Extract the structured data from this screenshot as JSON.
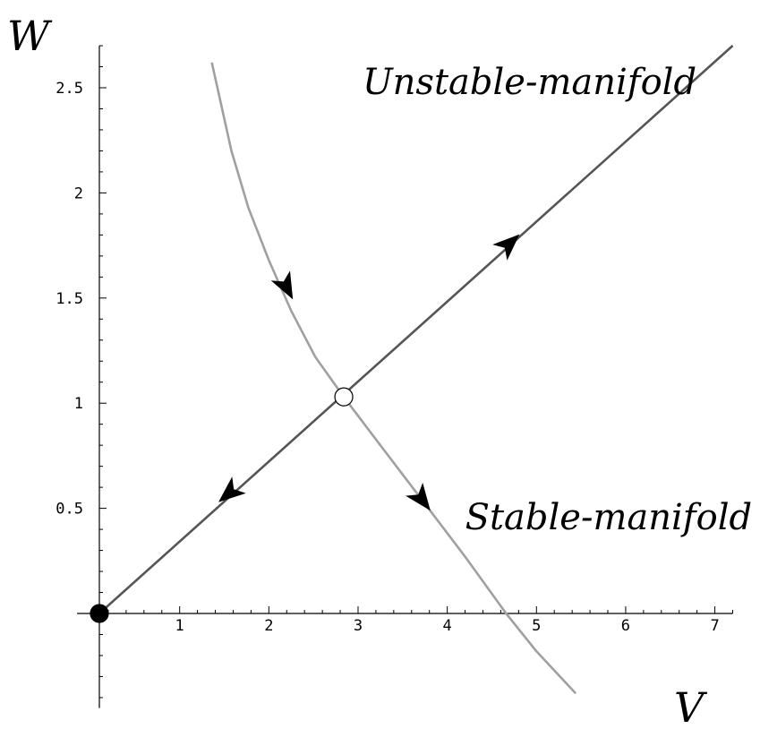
{
  "chart_data": {
    "type": "line",
    "xlabel": "V",
    "ylabel": "W",
    "xlim": [
      -0.15,
      7.2
    ],
    "ylim": [
      -0.45,
      2.7
    ],
    "x_ticks": [
      1,
      2,
      3,
      4,
      5,
      6,
      7
    ],
    "y_ticks": [
      0.5,
      1,
      1.5,
      2,
      2.5
    ],
    "x_tick_labels": [
      "1",
      "2",
      "3",
      "4",
      "5",
      "6",
      "7"
    ],
    "y_tick_labels": [
      "0.5",
      "1",
      "1.5",
      "2",
      "2.5"
    ],
    "grid": false,
    "series": [
      {
        "name": "Unstable-manifold",
        "color": "#555555",
        "points": [
          [
            0.1,
            0.0
          ],
          [
            7.2,
            2.7
          ]
        ],
        "arrows": [
          {
            "x": 4.7,
            "y": 1.76,
            "direction": "outward"
          },
          {
            "x": 1.55,
            "y": 0.57,
            "direction": "inward"
          }
        ]
      },
      {
        "name": "Stable-manifold",
        "color": "#a0a0a0",
        "points": [
          [
            1.36,
            2.62
          ],
          [
            1.45,
            2.45
          ],
          [
            1.58,
            2.2
          ],
          [
            1.77,
            1.93
          ],
          [
            2.0,
            1.68
          ],
          [
            2.25,
            1.44
          ],
          [
            2.52,
            1.22
          ],
          [
            2.84,
            1.03
          ],
          [
            3.25,
            0.8
          ],
          [
            3.7,
            0.55
          ],
          [
            4.2,
            0.27
          ],
          [
            4.66,
            0.0
          ],
          [
            5.0,
            -0.18
          ],
          [
            5.44,
            -0.38
          ]
        ],
        "arrows": [
          {
            "x": 2.2,
            "y": 1.55,
            "direction": "toward-saddle"
          },
          {
            "x": 3.72,
            "y": 0.54,
            "direction": "away-from-saddle"
          }
        ]
      }
    ],
    "fixed_points": [
      {
        "x": 0.1,
        "y": 0.0,
        "kind": "stable",
        "fill": "#000000"
      },
      {
        "x": 2.84,
        "y": 1.03,
        "kind": "saddle",
        "fill": "#ffffff"
      }
    ],
    "annotations": [
      {
        "text": "Unstable-manifold",
        "x": 3.05,
        "y": 2.47
      },
      {
        "text": "Stable-manifold",
        "x": 4.2,
        "y": 0.4
      }
    ]
  }
}
